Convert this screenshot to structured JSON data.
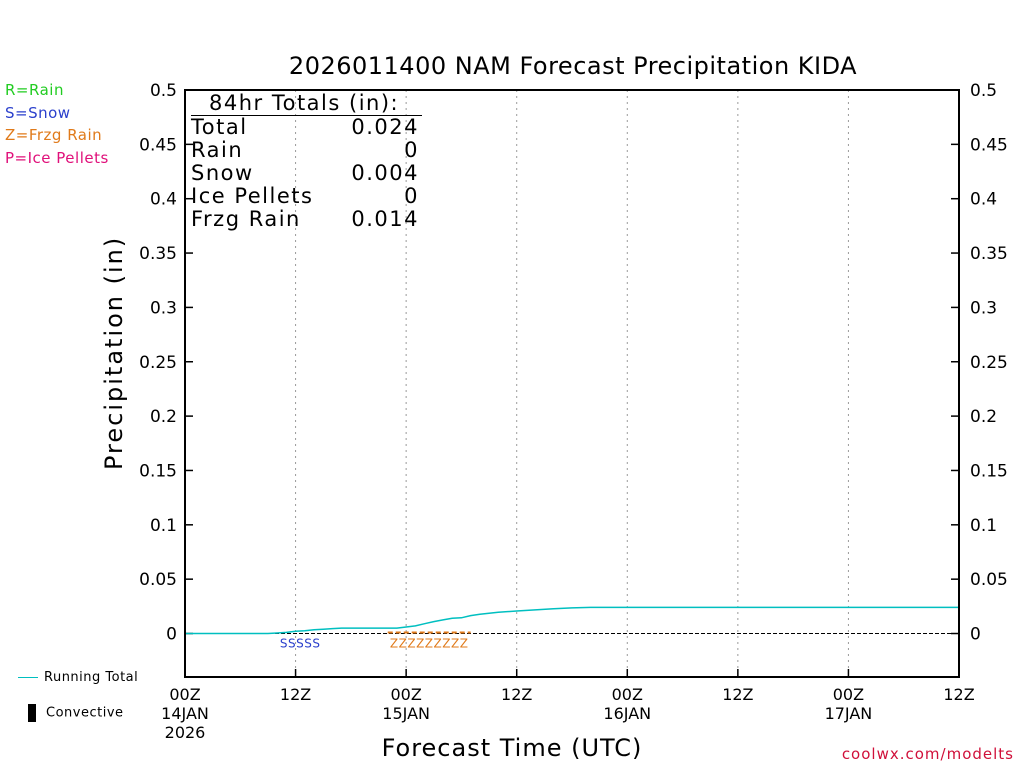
{
  "chart_data": {
    "type": "line",
    "title": "2026011400 NAM Forecast Precipitation KIDA",
    "xlabel": "Forecast Time (UTC)",
    "ylabel": "Precipitation (in)",
    "ylim": [
      -0.04,
      0.5
    ],
    "y_ticks": [
      0,
      0.05,
      0.1,
      0.15,
      0.2,
      0.25,
      0.3,
      0.35,
      0.4,
      0.45,
      0.5
    ],
    "y_tick_labels": [
      "0",
      "0.05",
      "0.1",
      "0.15",
      "0.2",
      "0.25",
      "0.3",
      "0.35",
      "0.4",
      "0.45",
      "0.5"
    ],
    "xlim_hours": [
      0,
      84
    ],
    "x_ticks": [
      {
        "hour": 0,
        "line1": "00Z",
        "line2": "14JAN",
        "line3": "2026"
      },
      {
        "hour": 12,
        "line1": "12Z",
        "line2": "",
        "line3": ""
      },
      {
        "hour": 24,
        "line1": "00Z",
        "line2": "15JAN",
        "line3": ""
      },
      {
        "hour": 36,
        "line1": "12Z",
        "line2": "",
        "line3": ""
      },
      {
        "hour": 48,
        "line1": "00Z",
        "line2": "16JAN",
        "line3": ""
      },
      {
        "hour": 60,
        "line1": "12Z",
        "line2": "",
        "line3": ""
      },
      {
        "hour": 72,
        "line1": "00Z",
        "line2": "17JAN",
        "line3": ""
      },
      {
        "hour": 84,
        "line1": "12Z",
        "line2": "",
        "line3": ""
      }
    ],
    "grid": "vertical dotted",
    "series": [
      {
        "name": "Running Total",
        "color": "#00bfc0",
        "x": [
          0,
          9,
          10,
          11,
          12,
          13,
          14,
          15,
          16,
          17,
          18,
          19,
          20,
          21,
          22,
          23,
          24,
          25,
          26,
          27,
          28,
          29,
          30,
          31,
          32,
          33,
          34,
          36,
          38,
          40,
          42,
          44,
          48,
          60,
          72,
          84
        ],
        "y": [
          0,
          0,
          0.0005,
          0.001,
          0.002,
          0.0025,
          0.0035,
          0.004,
          0.0045,
          0.005,
          0.005,
          0.005,
          0.005,
          0.005,
          0.005,
          0.005,
          0.006,
          0.007,
          0.009,
          0.011,
          0.0125,
          0.014,
          0.0145,
          0.0165,
          0.0178,
          0.0186,
          0.0195,
          0.0207,
          0.0217,
          0.0228,
          0.0236,
          0.024,
          0.024,
          0.024,
          0.024,
          0.024
        ]
      }
    ],
    "ptype_markers": [
      {
        "text": "SSSSS",
        "color": "#2a3fcc",
        "from_hour": 10,
        "to_hour": 15
      },
      {
        "text": "ZZZZZZZZZ",
        "color": "#e07a1a",
        "from_hour": 22,
        "to_hour": 31
      }
    ],
    "legend_placement": "left and bottom-left"
  },
  "totals_box": {
    "header": "84hr Totals (in):",
    "rows": [
      {
        "label": "Total",
        "value": "0.024"
      },
      {
        "label": "Rain",
        "value": "0"
      },
      {
        "label": "Snow",
        "value": "0.004"
      },
      {
        "label": "Ice Pellets",
        "value": "0"
      },
      {
        "label": "Frzg Rain",
        "value": "0.014"
      }
    ]
  },
  "ptype_key": [
    {
      "label": "R=Rain",
      "color": "#22cc22"
    },
    {
      "label": "S=Snow",
      "color": "#2a3fcc"
    },
    {
      "label": "Z=Frzg Rain",
      "color": "#e07a1a"
    },
    {
      "label": "P=Ice Pellets",
      "color": "#e0107a"
    }
  ],
  "bottom_legend": {
    "running_total": "Running Total",
    "convective": "Convective"
  },
  "credit": "coolwx.com/modelts"
}
